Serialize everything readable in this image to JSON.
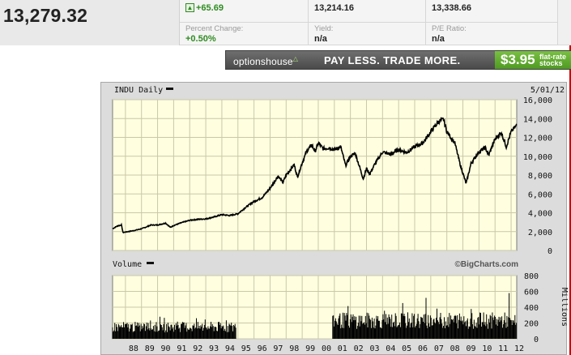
{
  "quote": {
    "price": "13,279.32",
    "change_value": "+65.69",
    "change_label": "Percent Change:",
    "change_percent": "+0.50%",
    "low": "13,214.16",
    "high": "13,338.66",
    "yield_label": "Yield:",
    "yield_value": "n/a",
    "pe_label": "P/E Ratio:",
    "pe_value": "n/a"
  },
  "ad": {
    "brand": "optionshouse",
    "slogan": "PAY LESS. TRADE MORE.",
    "price": "$3.95",
    "desc_line1": "flat-rate",
    "desc_line2": "stocks",
    "colors": {
      "bar": "#5a5a5a",
      "offer": "#5fa830"
    }
  },
  "chart_header": {
    "title": "INDU Daily",
    "date": "5/01/12",
    "credit": "©BigCharts.com",
    "volume_label": "Volume",
    "volume_units": "Millions"
  },
  "chart_data": [
    {
      "type": "line",
      "title": "INDU Daily",
      "ylim": [
        0,
        16000
      ],
      "y_ticks": [
        "0",
        "2,000",
        "4,000",
        "6,000",
        "8,000",
        "10,000",
        "12,000",
        "14,000",
        "16,000"
      ],
      "x_ticks": [
        "88",
        "89",
        "90",
        "91",
        "92",
        "93",
        "94",
        "95",
        "96",
        "97",
        "98",
        "99",
        "00",
        "01",
        "02",
        "03",
        "04",
        "05",
        "06",
        "07",
        "08",
        "09",
        "10",
        "11",
        "12"
      ],
      "xlim": [
        1987.2,
        2012.35
      ],
      "grid": true,
      "series": [
        {
          "x": [
            1987.2,
            1987.5,
            1987.75,
            1987.85,
            1988.0,
            1988.5,
            1989.0,
            1989.6,
            1990.0,
            1990.5,
            1990.8,
            1991.0,
            1991.5,
            1992.0,
            1992.5,
            1993.0,
            1993.5,
            1994.0,
            1994.5,
            1995.0,
            1995.5,
            1996.0,
            1996.5,
            1997.0,
            1997.5,
            1997.8,
            1998.0,
            1998.5,
            1998.7,
            1999.0,
            1999.3,
            1999.6,
            1999.8,
            2000.0,
            2000.3,
            2000.7,
            2001.0,
            2001.4,
            2001.7,
            2002.0,
            2002.3,
            2002.6,
            2002.8,
            2003.0,
            2003.2,
            2003.5,
            2004.0,
            2004.5,
            2005.0,
            2005.5,
            2006.0,
            2006.5,
            2007.0,
            2007.5,
            2007.8,
            2008.0,
            2008.5,
            2008.8,
            2009.0,
            2009.2,
            2009.5,
            2010.0,
            2010.4,
            2010.6,
            2011.0,
            2011.4,
            2011.7,
            2012.0,
            2012.35
          ],
          "values": [
            2300,
            2600,
            2700,
            1900,
            1950,
            2100,
            2300,
            2700,
            2700,
            2900,
            2450,
            2650,
            2950,
            3200,
            3300,
            3350,
            3550,
            3800,
            3700,
            3900,
            4600,
            5200,
            5600,
            6600,
            7900,
            7200,
            8000,
            9100,
            7800,
            9300,
            10600,
            11200,
            10500,
            11400,
            10800,
            10900,
            10700,
            11000,
            9000,
            10000,
            10300,
            8700,
            7600,
            8700,
            8100,
            9100,
            10450,
            10200,
            10700,
            10400,
            11000,
            11400,
            12600,
            13700,
            13900,
            12600,
            11400,
            9300,
            8200,
            7100,
            9200,
            10500,
            10900,
            10100,
            11800,
            12500,
            11000,
            12600,
            13279
          ]
        }
      ]
    },
    {
      "type": "bar",
      "title": "Volume",
      "ylabel": "Millions",
      "ylim": [
        0,
        800
      ],
      "y_ticks": [
        "0",
        "200",
        "400",
        "600",
        "800"
      ],
      "series": [
        {
          "name": "Volume",
          "segments": [
            {
              "from": 1987.2,
              "to": 1994.9,
              "level": 180,
              "peak": 280
            },
            {
              "from": 1994.9,
              "to": 2000.9,
              "level": 0,
              "peak": 0
            },
            {
              "from": 2000.9,
              "to": 2012.35,
              "level": 280,
              "peak": 620
            }
          ]
        }
      ]
    }
  ]
}
